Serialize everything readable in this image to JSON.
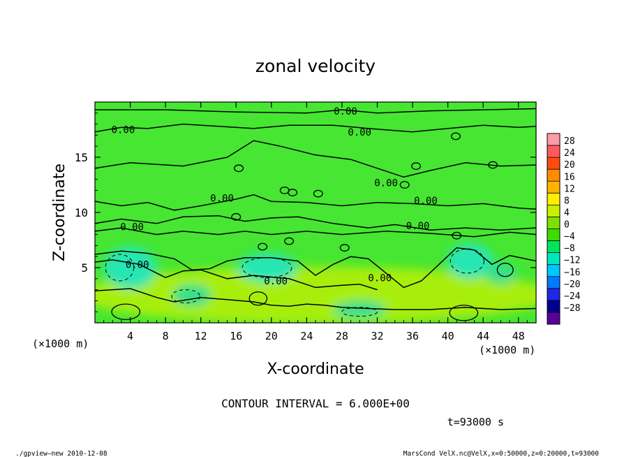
{
  "chart_data": {
    "type": "heatmap",
    "title": "zonal velocity",
    "xlabel": "X-coordinate",
    "ylabel": "Z-coordinate",
    "x_unit_label_left": "(×1000 m)",
    "x_unit_label_right": "(×1000 m)",
    "xlim": [
      0,
      50
    ],
    "ylim": [
      0,
      20
    ],
    "x_ticks": [
      4,
      8,
      12,
      16,
      20,
      24,
      28,
      32,
      36,
      40,
      44,
      48
    ],
    "x_tick_labels": [
      "4",
      "8",
      "12",
      "16",
      "20",
      "24",
      "28",
      "32",
      "36",
      "40",
      "44",
      "48"
    ],
    "y_ticks": [
      5,
      10,
      15
    ],
    "y_tick_labels": [
      "5",
      "10",
      "15"
    ],
    "contour_label": "0.00",
    "contour_interval_text": "CONTOUR INTERVAL = 6.000E+00",
    "time_text": "t=93000 s",
    "colorbar": {
      "levels": [
        28,
        24,
        20,
        16,
        12,
        8,
        4,
        0,
        -4,
        -8,
        -12,
        -16,
        -20,
        -24,
        -28
      ],
      "labels": [
        "28",
        "24",
        "20",
        "16",
        "12",
        "8",
        "4",
        "0",
        "−4",
        "−8",
        "−12",
        "−16",
        "−20",
        "−24",
        "−28"
      ],
      "colors": [
        "#ff9aa8",
        "#ff5a5a",
        "#ff4a10",
        "#ff8c00",
        "#ffb400",
        "#ffee00",
        "#c8f000",
        "#7ee000",
        "#3cdc00",
        "#00e65a",
        "#00e6c0",
        "#00c8ff",
        "#007aff",
        "#1e28e6",
        "#000090",
        "#5a0096"
      ]
    },
    "field_colors": {
      "background": "#46e632",
      "low_level": "#a8ee10",
      "negative_patch": "#28e6b4",
      "weak_negative": "#36e08a"
    },
    "grid": false
  },
  "footer": {
    "left": "./gpview—new   2010-12-08",
    "right": "MarsCond_VelX.nc@VelX,x=0:50000,z=0:20000,t=93000"
  }
}
